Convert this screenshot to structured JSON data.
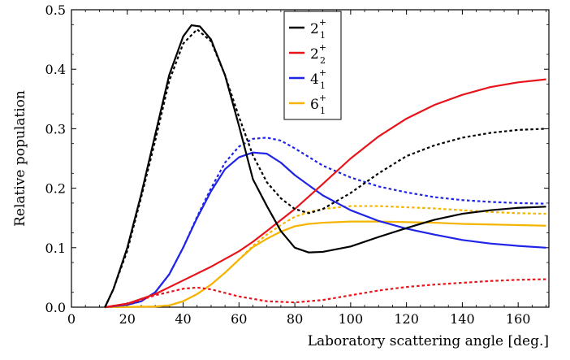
{
  "chart_data": {
    "type": "line",
    "xlabel": "Laboratory scattering angle [deg.]",
    "ylabel": "Relative population",
    "xlim": [
      0,
      171
    ],
    "ylim": [
      0,
      0.5
    ],
    "xticks": [
      0,
      20,
      40,
      60,
      80,
      100,
      120,
      140,
      160
    ],
    "yticks": [
      0.0,
      0.1,
      0.2,
      0.3,
      0.4,
      0.5
    ],
    "xtick_labels": [
      "0",
      "20",
      "40",
      "60",
      "80",
      "100",
      "120",
      "140",
      "160"
    ],
    "ytick_labels": [
      "0.0",
      "0.1",
      "0.2",
      "0.3",
      "0.4",
      "0.5"
    ],
    "grid": false,
    "legend_position": "top-center",
    "legend": [
      {
        "base": "2",
        "sub": "1",
        "sup": "+",
        "color": "#000000"
      },
      {
        "base": "2",
        "sub": "2",
        "sup": "+",
        "color": "#e8141b"
      },
      {
        "base": "4",
        "sub": "1",
        "sup": "+",
        "color": "#1f24e6"
      },
      {
        "base": "6",
        "sub": "1",
        "sup": "+",
        "color": "#f4b400"
      }
    ],
    "series": [
      {
        "state": "2_1+",
        "style": "solid",
        "color": "#000000",
        "points": [
          [
            12,
            0.0
          ],
          [
            15,
            0.03
          ],
          [
            20,
            0.1
          ],
          [
            25,
            0.19
          ],
          [
            30,
            0.29
          ],
          [
            35,
            0.39
          ],
          [
            40,
            0.455
          ],
          [
            43,
            0.474
          ],
          [
            46,
            0.472
          ],
          [
            50,
            0.45
          ],
          [
            55,
            0.39
          ],
          [
            60,
            0.305
          ],
          [
            65,
            0.215
          ],
          [
            70,
            0.17
          ],
          [
            75,
            0.128
          ],
          [
            80,
            0.1
          ],
          [
            85,
            0.092
          ],
          [
            90,
            0.093
          ],
          [
            100,
            0.102
          ],
          [
            110,
            0.118
          ],
          [
            120,
            0.133
          ],
          [
            130,
            0.147
          ],
          [
            140,
            0.157
          ],
          [
            150,
            0.163
          ],
          [
            160,
            0.167
          ],
          [
            170,
            0.169
          ]
        ]
      },
      {
        "state": "2_1+",
        "style": "dotted",
        "color": "#000000",
        "points": [
          [
            12,
            0.0
          ],
          [
            15,
            0.03
          ],
          [
            20,
            0.095
          ],
          [
            25,
            0.185
          ],
          [
            30,
            0.28
          ],
          [
            35,
            0.38
          ],
          [
            40,
            0.443
          ],
          [
            45,
            0.467
          ],
          [
            50,
            0.447
          ],
          [
            55,
            0.39
          ],
          [
            60,
            0.32
          ],
          [
            65,
            0.255
          ],
          [
            70,
            0.21
          ],
          [
            75,
            0.183
          ],
          [
            80,
            0.165
          ],
          [
            85,
            0.158
          ],
          [
            90,
            0.165
          ],
          [
            100,
            0.192
          ],
          [
            110,
            0.225
          ],
          [
            120,
            0.254
          ],
          [
            130,
            0.272
          ],
          [
            140,
            0.285
          ],
          [
            150,
            0.293
          ],
          [
            160,
            0.298
          ],
          [
            170,
            0.3
          ]
        ]
      },
      {
        "state": "2_2+",
        "style": "solid",
        "color": "#e8141b",
        "points": [
          [
            12,
            0.0
          ],
          [
            20,
            0.006
          ],
          [
            30,
            0.022
          ],
          [
            40,
            0.045
          ],
          [
            50,
            0.068
          ],
          [
            60,
            0.094
          ],
          [
            65,
            0.11
          ],
          [
            70,
            0.128
          ],
          [
            80,
            0.165
          ],
          [
            90,
            0.207
          ],
          [
            100,
            0.25
          ],
          [
            110,
            0.287
          ],
          [
            120,
            0.317
          ],
          [
            130,
            0.34
          ],
          [
            140,
            0.357
          ],
          [
            150,
            0.37
          ],
          [
            160,
            0.378
          ],
          [
            170,
            0.383
          ]
        ]
      },
      {
        "state": "2_2+",
        "style": "dotted",
        "color": "#e8141b",
        "points": [
          [
            12,
            0.0
          ],
          [
            20,
            0.005
          ],
          [
            30,
            0.02
          ],
          [
            40,
            0.031
          ],
          [
            45,
            0.033
          ],
          [
            50,
            0.03
          ],
          [
            60,
            0.018
          ],
          [
            70,
            0.01
          ],
          [
            80,
            0.008
          ],
          [
            90,
            0.012
          ],
          [
            100,
            0.02
          ],
          [
            110,
            0.028
          ],
          [
            120,
            0.034
          ],
          [
            130,
            0.038
          ],
          [
            140,
            0.041
          ],
          [
            150,
            0.044
          ],
          [
            160,
            0.046
          ],
          [
            170,
            0.047
          ]
        ]
      },
      {
        "state": "4_1+",
        "style": "solid",
        "color": "#1f24e6",
        "points": [
          [
            12,
            0.0
          ],
          [
            20,
            0.004
          ],
          [
            25,
            0.01
          ],
          [
            30,
            0.025
          ],
          [
            35,
            0.055
          ],
          [
            40,
            0.1
          ],
          [
            45,
            0.15
          ],
          [
            50,
            0.195
          ],
          [
            55,
            0.232
          ],
          [
            60,
            0.252
          ],
          [
            65,
            0.26
          ],
          [
            70,
            0.258
          ],
          [
            75,
            0.243
          ],
          [
            80,
            0.222
          ],
          [
            90,
            0.188
          ],
          [
            100,
            0.163
          ],
          [
            110,
            0.145
          ],
          [
            120,
            0.132
          ],
          [
            130,
            0.122
          ],
          [
            140,
            0.113
          ],
          [
            150,
            0.107
          ],
          [
            160,
            0.103
          ],
          [
            170,
            0.1
          ]
        ]
      },
      {
        "state": "4_1+",
        "style": "dotted",
        "color": "#1f24e6",
        "points": [
          [
            12,
            0.0
          ],
          [
            20,
            0.004
          ],
          [
            25,
            0.01
          ],
          [
            30,
            0.025
          ],
          [
            35,
            0.055
          ],
          [
            40,
            0.1
          ],
          [
            45,
            0.152
          ],
          [
            50,
            0.2
          ],
          [
            55,
            0.243
          ],
          [
            60,
            0.27
          ],
          [
            65,
            0.283
          ],
          [
            70,
            0.285
          ],
          [
            75,
            0.28
          ],
          [
            80,
            0.267
          ],
          [
            90,
            0.238
          ],
          [
            100,
            0.218
          ],
          [
            110,
            0.203
          ],
          [
            120,
            0.193
          ],
          [
            130,
            0.185
          ],
          [
            140,
            0.18
          ],
          [
            150,
            0.177
          ],
          [
            160,
            0.175
          ],
          [
            170,
            0.174
          ]
        ]
      },
      {
        "state": "6_1+",
        "style": "solid",
        "color": "#f4b400",
        "points": [
          [
            12,
            0.0
          ],
          [
            30,
            0.001
          ],
          [
            35,
            0.003
          ],
          [
            40,
            0.01
          ],
          [
            45,
            0.022
          ],
          [
            50,
            0.038
          ],
          [
            55,
            0.058
          ],
          [
            60,
            0.08
          ],
          [
            65,
            0.101
          ],
          [
            70,
            0.115
          ],
          [
            75,
            0.127
          ],
          [
            80,
            0.136
          ],
          [
            85,
            0.14
          ],
          [
            90,
            0.142
          ],
          [
            100,
            0.144
          ],
          [
            110,
            0.144
          ],
          [
            120,
            0.143
          ],
          [
            130,
            0.142
          ],
          [
            140,
            0.14
          ],
          [
            150,
            0.139
          ],
          [
            160,
            0.138
          ],
          [
            170,
            0.137
          ]
        ]
      },
      {
        "state": "6_1+",
        "style": "dotted",
        "color": "#f4b400",
        "points": [
          [
            12,
            0.0
          ],
          [
            30,
            0.001
          ],
          [
            35,
            0.003
          ],
          [
            40,
            0.01
          ],
          [
            45,
            0.022
          ],
          [
            50,
            0.038
          ],
          [
            55,
            0.058
          ],
          [
            60,
            0.08
          ],
          [
            65,
            0.103
          ],
          [
            70,
            0.122
          ],
          [
            75,
            0.138
          ],
          [
            80,
            0.152
          ],
          [
            85,
            0.16
          ],
          [
            90,
            0.165
          ],
          [
            100,
            0.17
          ],
          [
            110,
            0.17
          ],
          [
            120,
            0.168
          ],
          [
            130,
            0.166
          ],
          [
            140,
            0.163
          ],
          [
            150,
            0.16
          ],
          [
            160,
            0.158
          ],
          [
            170,
            0.157
          ]
        ]
      }
    ]
  }
}
